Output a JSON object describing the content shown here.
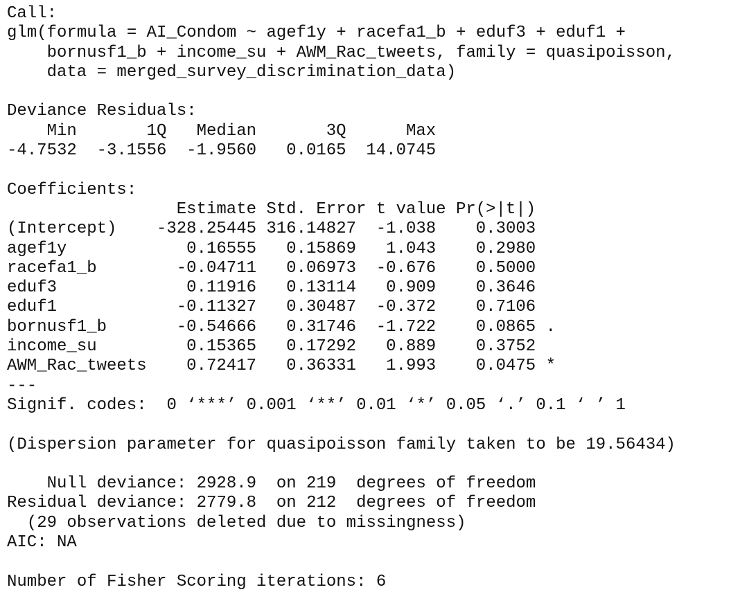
{
  "call": {
    "label": "Call:",
    "lines": [
      "glm(formula = AI_Condom ~ agef1y + racefa1_b + eduf3 + eduf1 +",
      "bornusf1_b + income_su + AWM_Rac_tweets, family = quasipoisson,",
      "data = merged_survey_discrimination_data)"
    ]
  },
  "deviance_residuals": {
    "label": "Deviance Residuals:",
    "headers": [
      "Min",
      "1Q",
      "Median",
      "3Q",
      "Max"
    ],
    "values": [
      "-4.7532",
      "-3.1556",
      "-1.9560",
      "0.0165",
      "14.0745"
    ]
  },
  "coefficients": {
    "label": "Coefficients:",
    "headers": [
      "Estimate",
      "Std. Error",
      "t value",
      "Pr(>|t|)"
    ],
    "rows": [
      {
        "name": "(Intercept)",
        "estimate": "-328.25445",
        "std_error": "316.14827",
        "t_value": "-1.038",
        "p_value": "0.3003"
      },
      {
        "name": "agef1y",
        "estimate": "0.16555",
        "std_error": "0.15869",
        "t_value": "1.043",
        "p_value": "0.2980"
      },
      {
        "name": "racefa1_b",
        "estimate": "-0.04711",
        "std_error": "0.06973",
        "t_value": "-0.676",
        "p_value": "0.5000"
      },
      {
        "name": "eduf3",
        "estimate": "0.11916",
        "std_error": "0.13114",
        "t_value": "0.909",
        "p_value": "0.3646"
      },
      {
        "name": "eduf1",
        "estimate": "-0.11327",
        "std_error": "0.30487",
        "t_value": "-0.372",
        "p_value": "0.7106"
      },
      {
        "name": "bornusf1_b",
        "estimate": "-0.54666",
        "std_error": "0.31746",
        "t_value": "-1.722",
        "p_value": "0.0865",
        "signif": "."
      },
      {
        "name": "income_su",
        "estimate": "0.15365",
        "std_error": "0.17292",
        "t_value": "0.889",
        "p_value": "0.3752"
      },
      {
        "name": "AWM_Rac_tweets",
        "estimate": "0.72417",
        "std_error": "0.36331",
        "t_value": "1.993",
        "p_value": "0.0475",
        "signif": "*"
      }
    ]
  },
  "separator": "---",
  "signif_codes": "Signif. codes:  0 ‘***’ 0.001 ‘**’ 0.01 ‘*’ 0.05 ‘.’ 0.1 ‘ ’ 1",
  "dispersion": "(Dispersion parameter for quasipoisson family taken to be 19.56434)",
  "deviance": {
    "null": "Null deviance: 2928.9  on 219  degrees of freedom",
    "residual": "Residual deviance: 2779.8  on 212  degrees of freedom",
    "missing": "(29 observations deleted due to missingness)"
  },
  "aic": "AIC: NA",
  "iterations": "Number of Fisher Scoring iterations: 6"
}
